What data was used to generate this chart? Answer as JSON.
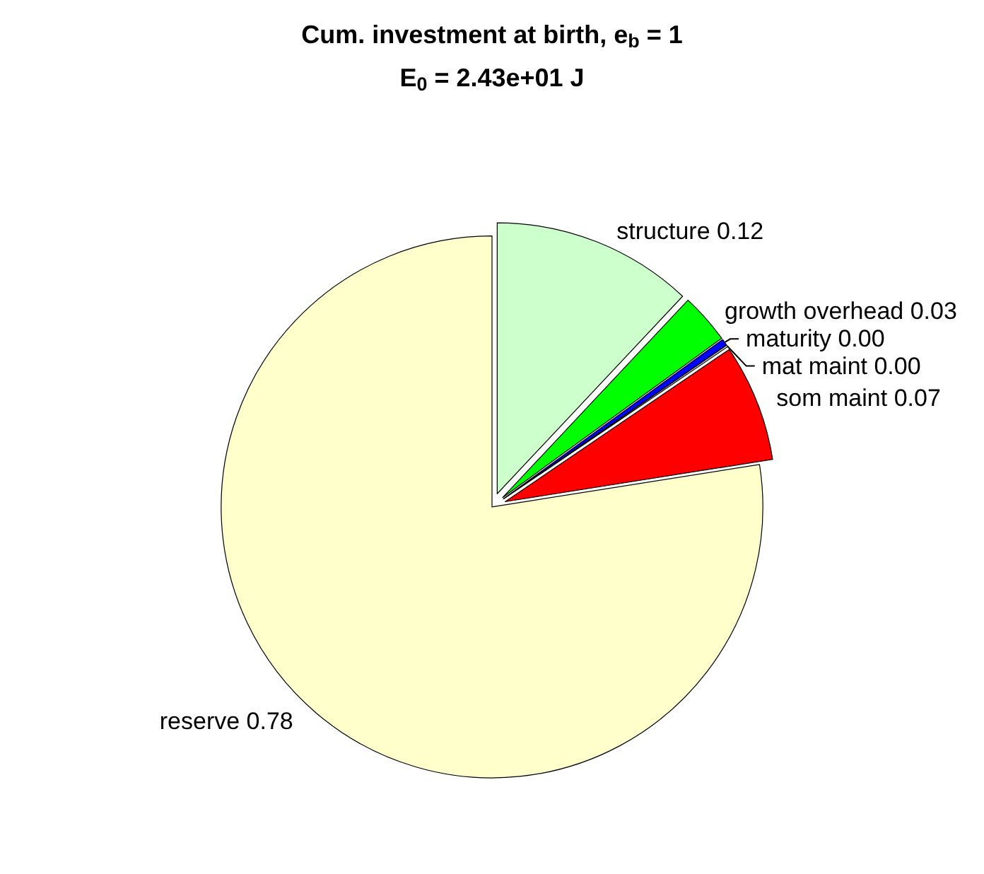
{
  "chart_data": {
    "type": "pie",
    "title": "Cum. investment at birth, e$_{b}$ = 1",
    "subtitle": "E$_{0}$ = 2.43e+01 J",
    "categories": [
      "structure",
      "growth overhead",
      "maturity",
      "mat maint",
      "som maint",
      "reserve"
    ],
    "values": [
      0.12,
      0.03,
      0.004,
      0.001,
      0.07,
      0.775
    ],
    "value_labels": [
      "0.12",
      "0.03",
      "0.00",
      "0.00",
      "0.07",
      "0.78"
    ],
    "colors": [
      "#ccffcc",
      "#00ff00",
      "#0000ff",
      "#ffffff",
      "#ff0000",
      "#ffffcc"
    ],
    "legend": false
  }
}
